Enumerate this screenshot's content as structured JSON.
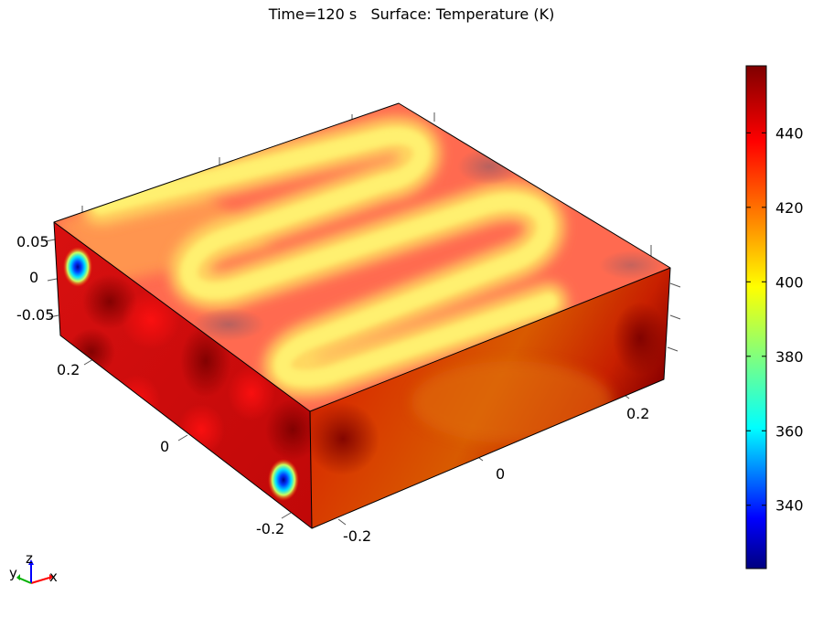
{
  "title": "Time=120 s   Surface: Temperature (K)",
  "chart_data": {
    "type": "heatmap",
    "title": "Time=120 s   Surface: Temperature (K)",
    "time": "120 s",
    "quantity": "Temperature",
    "unit": "K",
    "colormap": "rainbow",
    "colorbar": {
      "min": 323,
      "max": 458,
      "ticks": [
        "340",
        "360",
        "380",
        "400",
        "420",
        "440"
      ],
      "placement": "right"
    },
    "axes": {
      "x": {
        "ticks": [
          "-0.2",
          "0",
          "0.2"
        ],
        "range": [
          -0.3,
          0.3
        ]
      },
      "y": {
        "ticks": [
          "-0.2",
          "0",
          "0.2"
        ],
        "range": [
          -0.3,
          0.3
        ]
      },
      "z": {
        "ticks": [
          "-0.05",
          "0",
          "0.05"
        ],
        "range": [
          -0.07,
          0.07
        ]
      }
    },
    "triad": {
      "x": "x",
      "y": "y",
      "z": "z"
    },
    "features": {
      "top_surface": "serpentine channel pattern, approx. 400-415 K inside channel, 425-445 K between passes",
      "front_face_cold_spot_K": 323,
      "side_face_cold_spot_K": 323,
      "side_faces_typical_K": 440
    }
  }
}
